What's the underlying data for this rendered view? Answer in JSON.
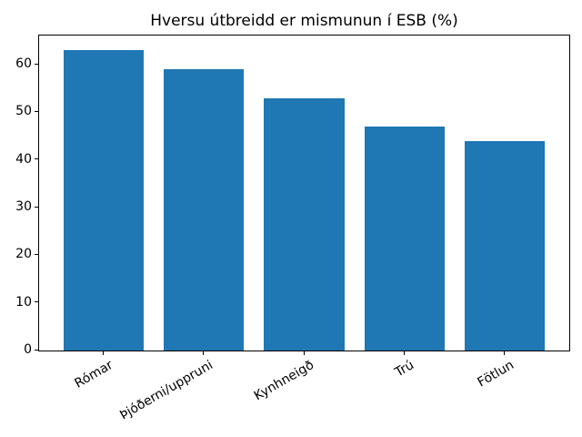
{
  "figure": {
    "background": "#ffffff"
  },
  "chart_data": {
    "type": "bar",
    "title": "Hversu útbreidd er mismunun í ESB (%)",
    "categories": [
      "Rómar",
      "Þjóðerni/uppruni",
      "Kynhneigð",
      "Trú",
      "Fötlun"
    ],
    "values": [
      63,
      59,
      53,
      47,
      44
    ],
    "xlabel": "",
    "ylabel": "",
    "ylim": [
      0,
      66.15
    ],
    "yticks": [
      0,
      10,
      20,
      30,
      40,
      50,
      60
    ],
    "ytick_labels": [
      "0",
      "10",
      "20",
      "30",
      "40",
      "50",
      "60"
    ],
    "bar_color": "#1f77b4",
    "grid": false,
    "legend": null,
    "xtick_label_rotation_deg": 30
  }
}
